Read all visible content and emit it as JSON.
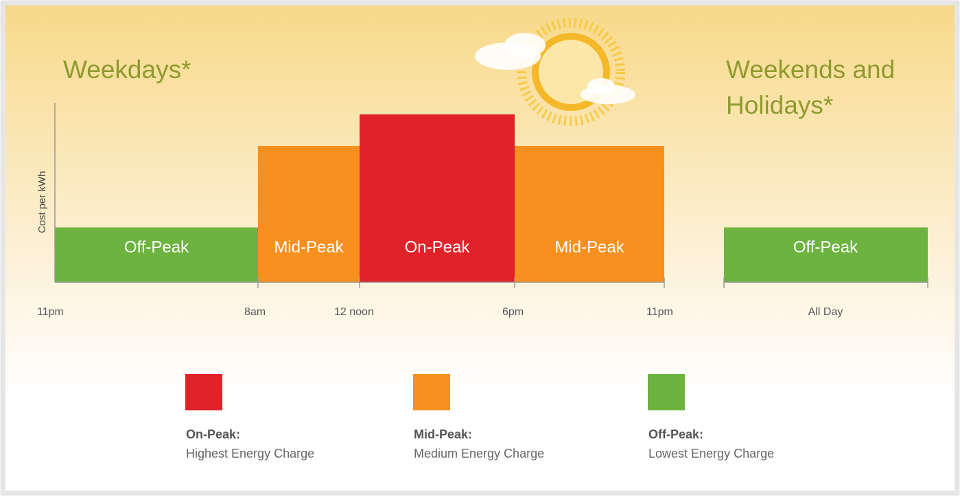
{
  "weekdays": {
    "title": "Weekdays*",
    "y_axis_label": "Cost per kWh",
    "periods": [
      "Off-Peak",
      "Mid-Peak",
      "On-Peak",
      "Mid-Peak"
    ],
    "time_labels": [
      "11pm",
      "8am",
      "12 noon",
      "6pm",
      "11pm"
    ]
  },
  "weekends": {
    "title_lines": [
      "Weekends and",
      "Holidays*"
    ],
    "periods": [
      "Off-Peak"
    ],
    "time_label": "All Day"
  },
  "legend": [
    {
      "name": "On-Peak:",
      "description": "Highest Energy Charge"
    },
    {
      "name": "Mid-Peak:",
      "description": "Medium Energy Charge"
    },
    {
      "name": "Off-Peak:",
      "description": "Lowest Energy Charge"
    }
  ]
}
